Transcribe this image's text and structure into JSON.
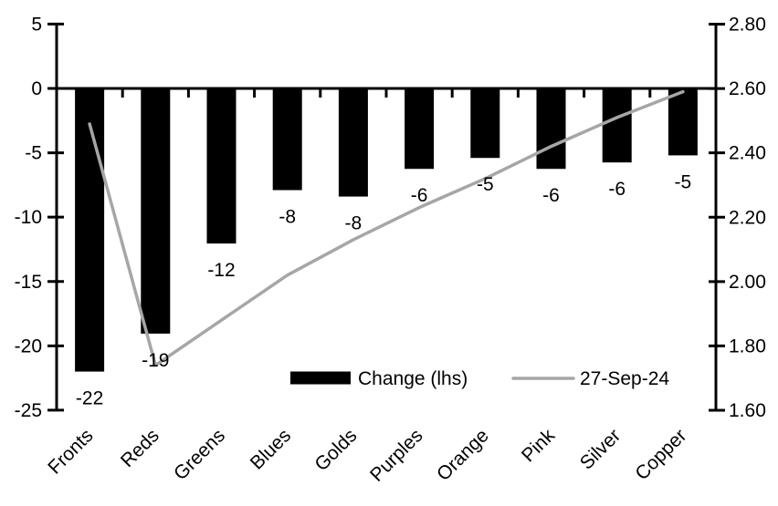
{
  "chart_data": {
    "type": "combo",
    "title": "",
    "xlabel": "",
    "ylabel_left": "",
    "ylabel_right": "",
    "grid": false,
    "categories": [
      "Fronts",
      "Reds",
      "Greens",
      "Blues",
      "Golds",
      "Purples",
      "Orange",
      "Pink",
      "Silver",
      "Copper"
    ],
    "series": [
      {
        "name": "Change (lhs)",
        "type": "bar",
        "axis": "left",
        "color": "#000000",
        "values": [
          -22,
          -19,
          -12,
          -8,
          -8,
          -6,
          -5,
          -6,
          -6,
          -5
        ],
        "values_plot": [
          -22.0,
          -19.05,
          -12.05,
          -7.9,
          -8.4,
          -6.25,
          -5.4,
          -6.25,
          -5.75,
          -5.2
        ],
        "data_labels": [
          "-22",
          "-19",
          "-12",
          "-8",
          "-8",
          "-6",
          "-5",
          "-6",
          "-6",
          "-5"
        ]
      },
      {
        "name": "27-Sep-24",
        "type": "line",
        "axis": "right",
        "color": "#a6a6a6",
        "values": [
          2.49,
          1.74,
          1.88,
          2.02,
          2.13,
          2.23,
          2.32,
          2.42,
          2.51,
          2.59
        ]
      }
    ],
    "left_axis": {
      "min": -25,
      "max": 5,
      "tick_step": 5,
      "tick_labels": [
        "5",
        "0",
        "-5",
        "-10",
        "-15",
        "-20",
        "-25"
      ]
    },
    "right_axis": {
      "min": 1.6,
      "max": 2.8,
      "tick_step": 0.2,
      "tick_labels": [
        "2.80",
        "2.60",
        "2.40",
        "2.20",
        "2.00",
        "1.80",
        "1.60"
      ]
    },
    "legend": {
      "position": "bottom-center-inside",
      "entries": [
        {
          "label": "Change (lhs)",
          "swatch": "bar",
          "color": "#000000"
        },
        {
          "label": "27-Sep-24",
          "swatch": "line",
          "color": "#a6a6a6"
        }
      ]
    }
  },
  "colors": {
    "background": "#ffffff",
    "axis": "#000000",
    "text": "#000000",
    "bar": "#000000",
    "line": "#a6a6a6"
  }
}
